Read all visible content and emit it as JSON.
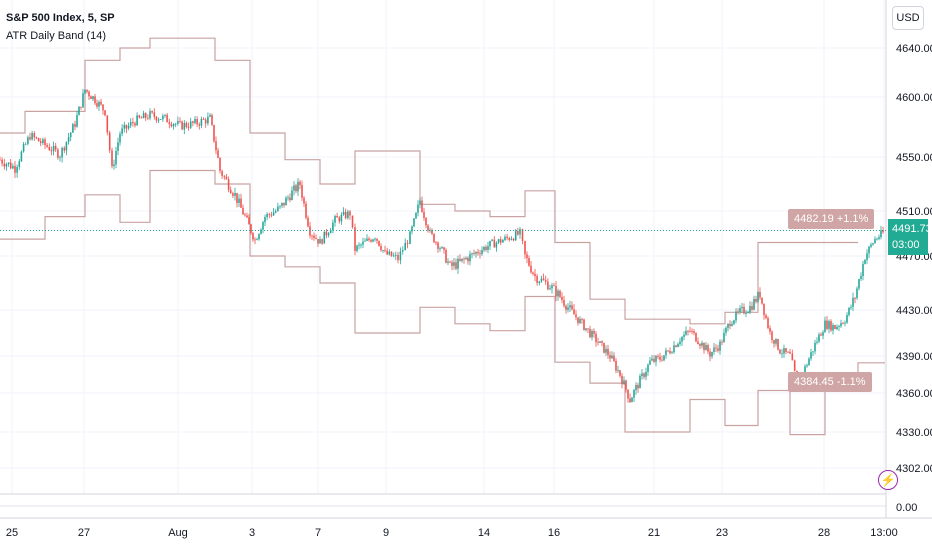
{
  "header": {
    "title": "S&P 500 Index, 5, SP",
    "indicator": "ATR Daily Band (14)"
  },
  "currency_button": "USD",
  "last_price": {
    "value": "4491.73",
    "countdown": "03:00",
    "color": "#22ab94"
  },
  "upper_band_label": "4482.19  +1.1%",
  "lower_band_label": "4384.45  -1.1%",
  "alert_icon": "lightning-icon",
  "colors": {
    "up": "#26a69a",
    "down": "#ef5350",
    "band": "#c9a2a2",
    "grid": "#f0f3fa",
    "price_line": "#22ab94"
  },
  "chart_data": {
    "type": "candlestick",
    "title": "S&P 500 Index, 5, SP",
    "y_ticks": [
      4640,
      4600,
      4550,
      4510,
      4470,
      4430,
      4390,
      4360,
      4330,
      4302
    ],
    "sub_pane_ticks": [
      "0.00"
    ],
    "x_ticks": [
      "25",
      "27",
      "Aug",
      "3",
      "7",
      "9",
      "14",
      "16",
      "21",
      "23",
      "28",
      "13:00"
    ],
    "ylim": [
      4290,
      4655
    ],
    "price_series": [
      [
        0,
        4548
      ],
      [
        15,
        4542
      ],
      [
        30,
        4568
      ],
      [
        45,
        4560
      ],
      [
        60,
        4552
      ],
      [
        75,
        4578
      ],
      [
        85,
        4606
      ],
      [
        95,
        4598
      ],
      [
        105,
        4588
      ],
      [
        112,
        4540
      ],
      [
        120,
        4570
      ],
      [
        135,
        4580
      ],
      [
        150,
        4585
      ],
      [
        165,
        4582
      ],
      [
        180,
        4576
      ],
      [
        195,
        4578
      ],
      [
        210,
        4582
      ],
      [
        220,
        4540
      ],
      [
        235,
        4522
      ],
      [
        245,
        4505
      ],
      [
        255,
        4484
      ],
      [
        265,
        4505
      ],
      [
        280,
        4512
      ],
      [
        290,
        4522
      ],
      [
        300,
        4530
      ],
      [
        310,
        4492
      ],
      [
        320,
        4482
      ],
      [
        335,
        4502
      ],
      [
        350,
        4508
      ],
      [
        355,
        4476
      ],
      [
        365,
        4482
      ],
      [
        375,
        4488
      ],
      [
        385,
        4472
      ],
      [
        398,
        4468
      ],
      [
        410,
        4488
      ],
      [
        420,
        4518
      ],
      [
        430,
        4490
      ],
      [
        440,
        4478
      ],
      [
        450,
        4462
      ],
      [
        460,
        4465
      ],
      [
        470,
        4470
      ],
      [
        480,
        4475
      ],
      [
        490,
        4480
      ],
      [
        505,
        4485
      ],
      [
        520,
        4490
      ],
      [
        525,
        4470
      ],
      [
        535,
        4455
      ],
      [
        550,
        4448
      ],
      [
        560,
        4440
      ],
      [
        570,
        4430
      ],
      [
        580,
        4420
      ],
      [
        590,
        4410
      ],
      [
        600,
        4400
      ],
      [
        610,
        4390
      ],
      [
        620,
        4375
      ],
      [
        630,
        4355
      ],
      [
        640,
        4370
      ],
      [
        650,
        4385
      ],
      [
        660,
        4388
      ],
      [
        670,
        4395
      ],
      [
        680,
        4405
      ],
      [
        690,
        4412
      ],
      [
        700,
        4402
      ],
      [
        710,
        4392
      ],
      [
        720,
        4400
      ],
      [
        730,
        4420
      ],
      [
        740,
        4428
      ],
      [
        750,
        4432
      ],
      [
        760,
        4442
      ],
      [
        770,
        4410
      ],
      [
        780,
        4395
      ],
      [
        790,
        4390
      ],
      [
        797,
        4368
      ],
      [
        805,
        4380
      ],
      [
        815,
        4400
      ],
      [
        825,
        4418
      ],
      [
        835,
        4415
      ],
      [
        845,
        4422
      ],
      [
        855,
        4440
      ],
      [
        865,
        4470
      ],
      [
        875,
        4485
      ],
      [
        885,
        4491.73
      ]
    ],
    "upper_band": [
      [
        0,
        4570
      ],
      [
        25,
        4570
      ],
      [
        25,
        4588
      ],
      [
        85,
        4588
      ],
      [
        85,
        4630
      ],
      [
        120,
        4630
      ],
      [
        120,
        4640
      ],
      [
        150,
        4640
      ],
      [
        150,
        4648
      ],
      [
        215,
        4648
      ],
      [
        215,
        4630
      ],
      [
        250,
        4630
      ],
      [
        250,
        4570
      ],
      [
        285,
        4570
      ],
      [
        285,
        4548
      ],
      [
        320,
        4548
      ],
      [
        320,
        4530
      ],
      [
        355,
        4530
      ],
      [
        355,
        4555
      ],
      [
        420,
        4555
      ],
      [
        420,
        4515
      ],
      [
        455,
        4515
      ],
      [
        455,
        4510
      ],
      [
        490,
        4510
      ],
      [
        490,
        4505
      ],
      [
        525,
        4505
      ],
      [
        525,
        4525
      ],
      [
        555,
        4525
      ],
      [
        555,
        4482
      ],
      [
        590,
        4482
      ],
      [
        590,
        4438
      ],
      [
        625,
        4438
      ],
      [
        625,
        4422
      ],
      [
        690,
        4422
      ],
      [
        690,
        4418
      ],
      [
        725,
        4418
      ],
      [
        725,
        4428
      ],
      [
        758,
        4428
      ],
      [
        758,
        4482
      ],
      [
        790,
        4482
      ],
      [
        790,
        4482
      ],
      [
        858,
        4482
      ]
    ],
    "lower_band": [
      [
        0,
        4485
      ],
      [
        45,
        4485
      ],
      [
        45,
        4505
      ],
      [
        85,
        4505
      ],
      [
        85,
        4522
      ],
      [
        120,
        4522
      ],
      [
        120,
        4500
      ],
      [
        150,
        4500
      ],
      [
        150,
        4540
      ],
      [
        215,
        4540
      ],
      [
        215,
        4530
      ],
      [
        250,
        4530
      ],
      [
        250,
        4470
      ],
      [
        285,
        4470
      ],
      [
        285,
        4462
      ],
      [
        320,
        4462
      ],
      [
        320,
        4450
      ],
      [
        355,
        4450
      ],
      [
        355,
        4410
      ],
      [
        420,
        4410
      ],
      [
        420,
        4432
      ],
      [
        455,
        4432
      ],
      [
        455,
        4418
      ],
      [
        490,
        4418
      ],
      [
        490,
        4412
      ],
      [
        525,
        4412
      ],
      [
        525,
        4440
      ],
      [
        555,
        4440
      ],
      [
        555,
        4385
      ],
      [
        590,
        4385
      ],
      [
        590,
        4368
      ],
      [
        625,
        4368
      ],
      [
        625,
        4330
      ],
      [
        690,
        4330
      ],
      [
        690,
        4355
      ],
      [
        725,
        4355
      ],
      [
        725,
        4335
      ],
      [
        758,
        4335
      ],
      [
        758,
        4362
      ],
      [
        790,
        4362
      ],
      [
        790,
        4328
      ],
      [
        825,
        4328
      ],
      [
        825,
        4375
      ],
      [
        858,
        4375
      ],
      [
        858,
        4384.45
      ],
      [
        885,
        4384.45
      ]
    ]
  }
}
